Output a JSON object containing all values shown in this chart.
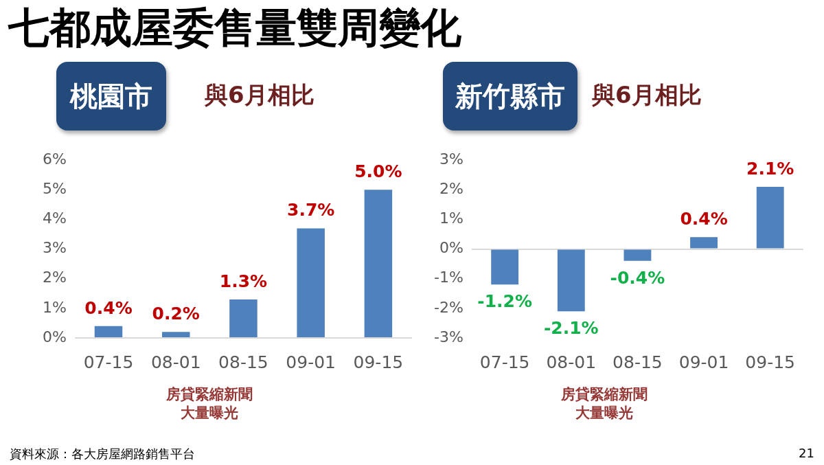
{
  "chart_data": [
    {
      "type": "other",
      "title": "七都成屋委售量雙周變化"
    },
    {
      "type": "bar",
      "title": "桃園市",
      "subtitle": "與6月相比",
      "categories": [
        "07-15",
        "08-01",
        "08-15",
        "09-01",
        "09-15"
      ],
      "values": [
        0.4,
        0.2,
        1.3,
        3.7,
        5.0
      ],
      "color": "#4f81bd",
      "value_labels": [
        "0.4%",
        "0.2%",
        "1.3%",
        "3.7%",
        "5.0%"
      ],
      "ylim": [
        0,
        6
      ],
      "yticks": [
        {
          "value": 0,
          "label": "0%"
        },
        {
          "value": 1,
          "label": "1%"
        },
        {
          "value": 2,
          "label": "2%"
        },
        {
          "value": 3,
          "label": "3%"
        },
        {
          "value": 4,
          "label": "4%"
        },
        {
          "value": 5,
          "label": "5%"
        },
        {
          "value": 6,
          "label": "6%"
        }
      ],
      "annotations": [
        "房貸緊縮新聞大量曝光"
      ]
    },
    {
      "type": "bar",
      "title": "新竹縣市",
      "subtitle": "與6月相比",
      "categories": [
        "07-15",
        "08-01",
        "08-15",
        "09-01",
        "09-15"
      ],
      "values": [
        -1.2,
        -2.1,
        -0.4,
        0.4,
        2.1
      ],
      "color": "#4f81bd",
      "value_labels": [
        "-1.2%",
        "-2.1%",
        "-0.4%",
        "0.4%",
        "2.1%"
      ],
      "ylim": [
        -3,
        3
      ],
      "yticks": [
        {
          "value": -3,
          "label": "-3%"
        },
        {
          "value": -2,
          "label": "-2%"
        },
        {
          "value": -1,
          "label": "-1%"
        },
        {
          "value": 0,
          "label": "0%"
        },
        {
          "value": 1,
          "label": "1%"
        },
        {
          "value": 2,
          "label": "2%"
        },
        {
          "value": 3,
          "label": "3%"
        }
      ],
      "annotations": [
        "房貸緊縮新聞大量曝光"
      ]
    },
    {
      "type": "other",
      "annotations": [
        "資料來源：各大房屋網路銷售平台",
        "21"
      ]
    }
  ]
}
